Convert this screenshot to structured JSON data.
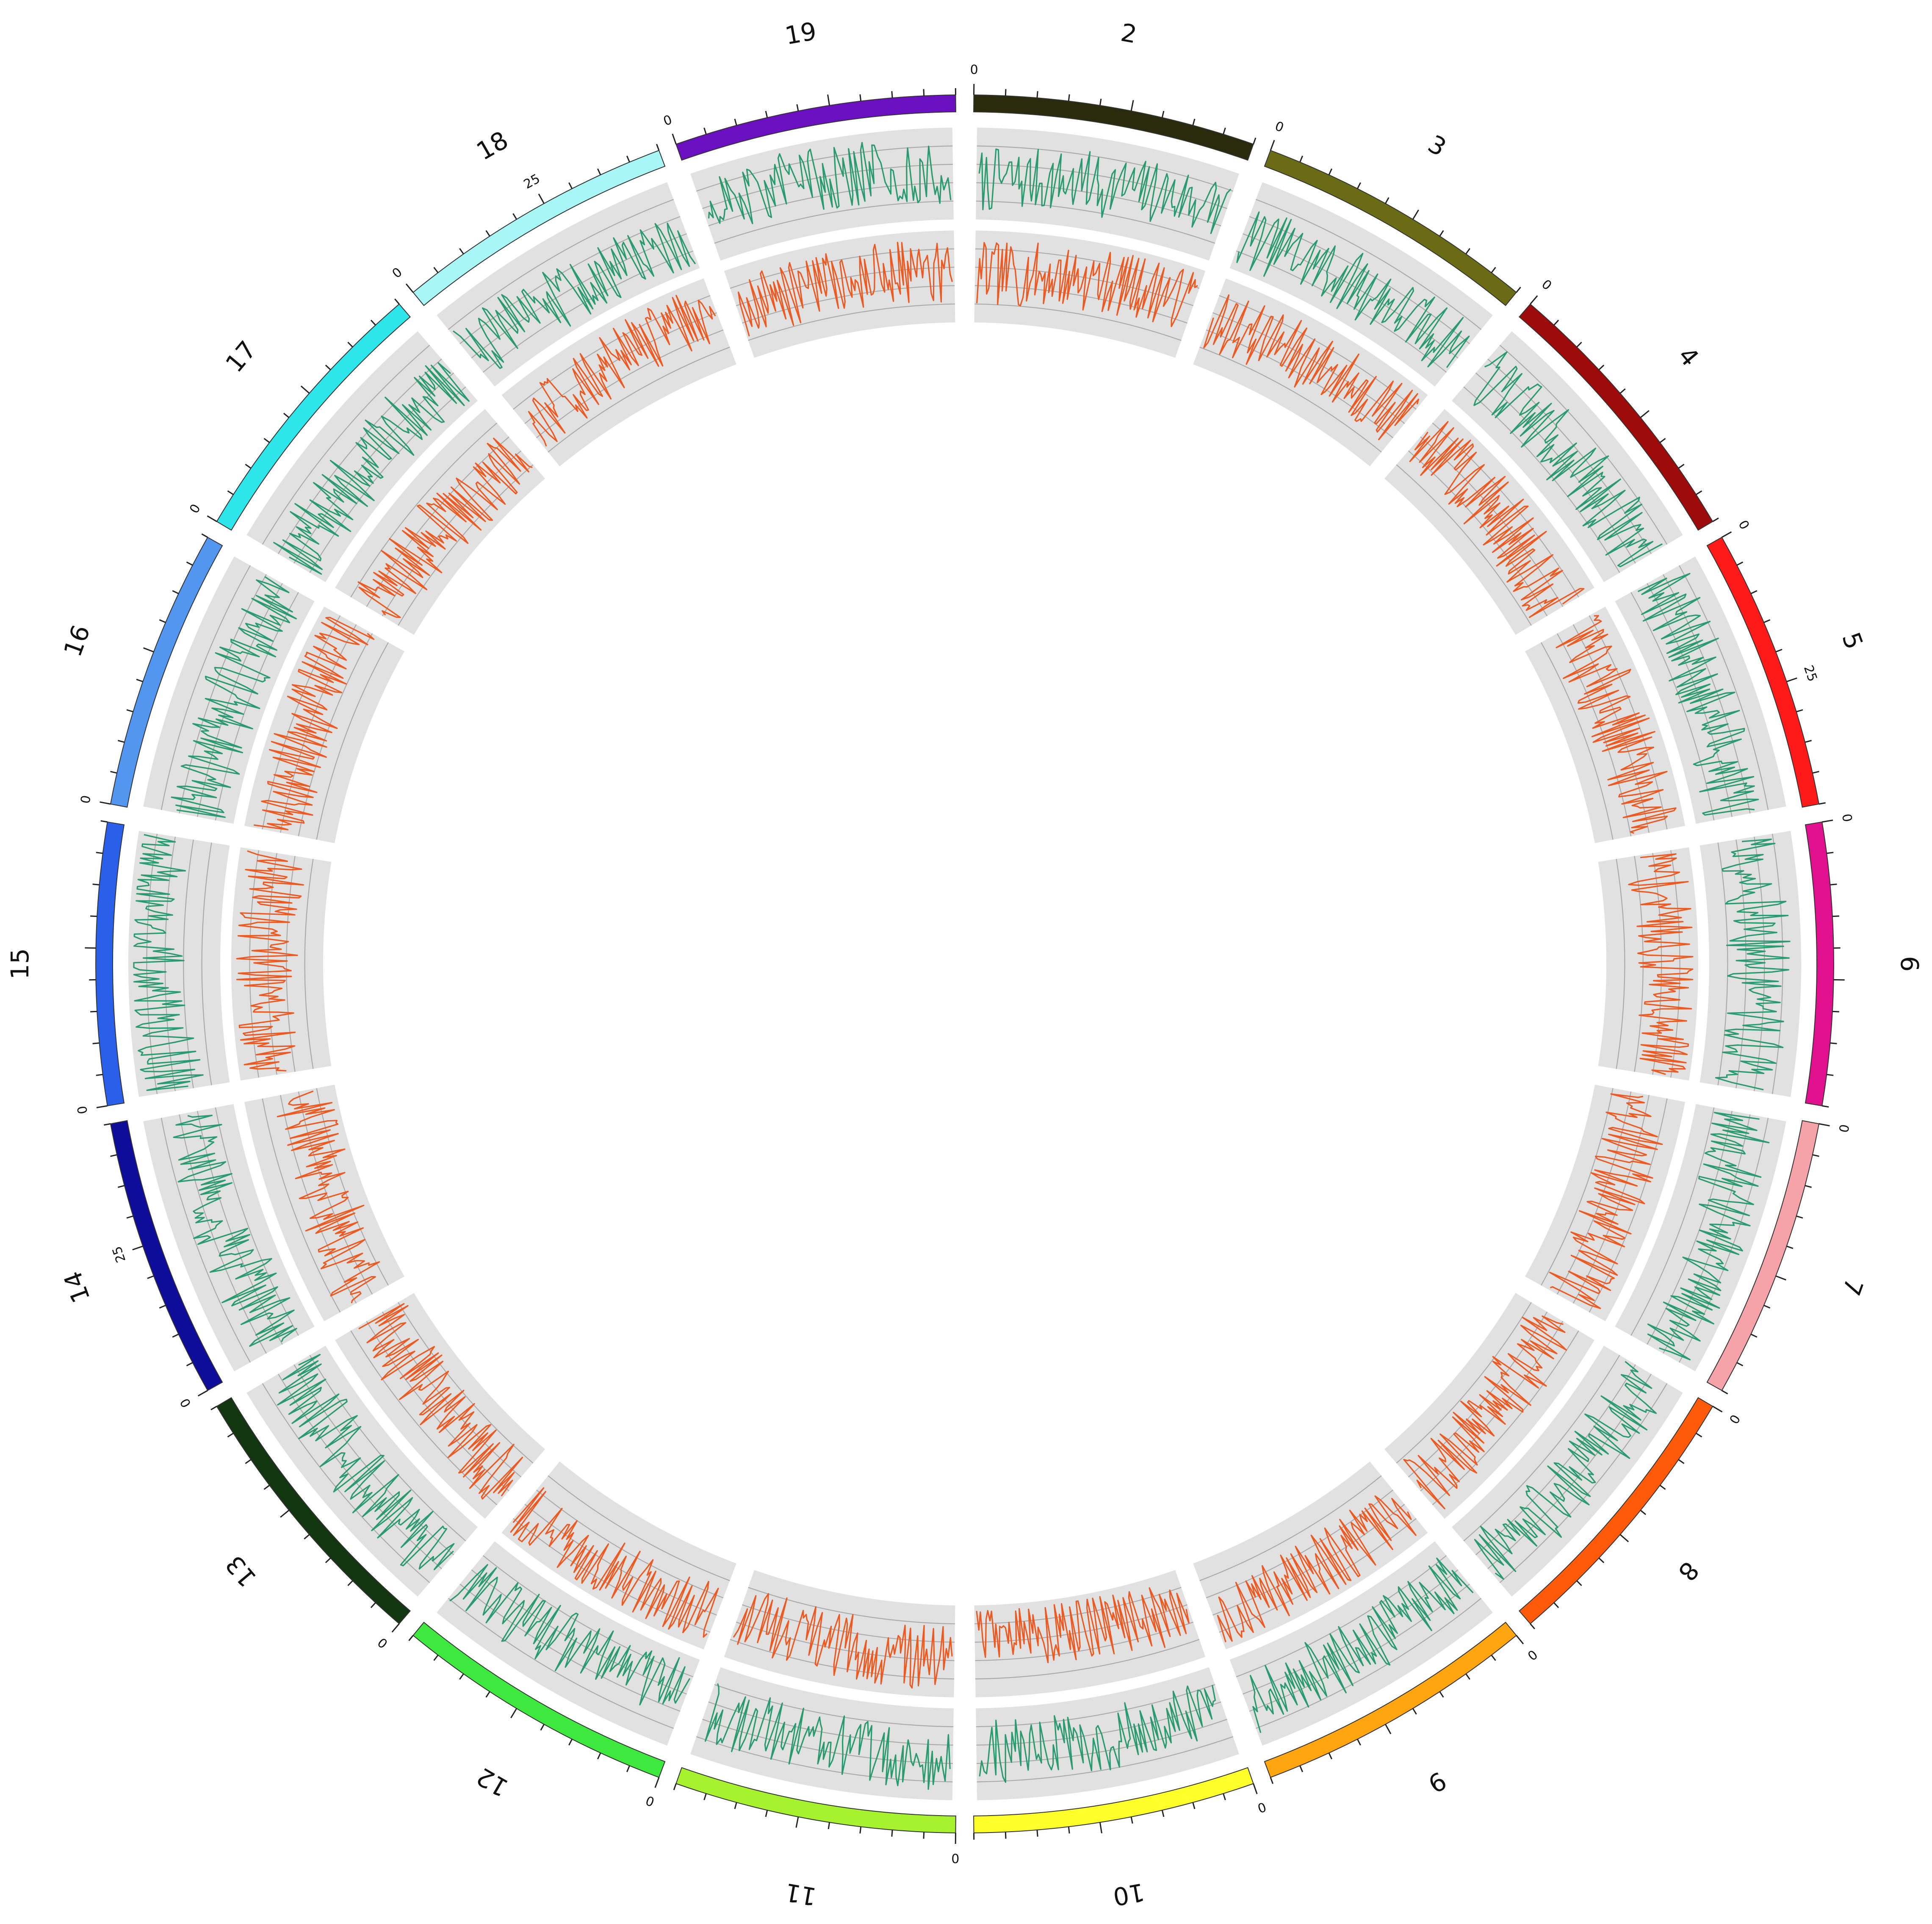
{
  "chromosomes": [
    {
      "name": "2",
      "color": "#2a2a0d"
    },
    {
      "name": "3",
      "color": "#6b6b16"
    },
    {
      "name": "4",
      "color": "#9c0a0a"
    },
    {
      "name": "5",
      "color": "#ff1a1a"
    },
    {
      "name": "6",
      "color": "#e0108f"
    },
    {
      "name": "7",
      "color": "#f5a3a8"
    },
    {
      "name": "8",
      "color": "#ff5a0a"
    },
    {
      "name": "9",
      "color": "#ffa510"
    },
    {
      "name": "10",
      "color": "#ffff2a"
    },
    {
      "name": "11",
      "color": "#a6f22e"
    },
    {
      "name": "12",
      "color": "#3ee83e"
    },
    {
      "name": "13",
      "color": "#12360f"
    },
    {
      "name": "14",
      "color": "#0d0d9a"
    },
    {
      "name": "15",
      "color": "#2a5fea"
    },
    {
      "name": "16",
      "color": "#5296f0"
    },
    {
      "name": "17",
      "color": "#2ee6ea"
    },
    {
      "name": "18",
      "color": "#a8f6f6"
    },
    {
      "name": "19",
      "color": "#6a10c0"
    }
  ],
  "tick_labels": {
    "start": "0",
    "mid": "25"
  },
  "tracks": [
    {
      "id": "outer-track",
      "color": "#2a9a70"
    },
    {
      "id": "inner-track",
      "color": "#ec5a22"
    }
  ]
}
